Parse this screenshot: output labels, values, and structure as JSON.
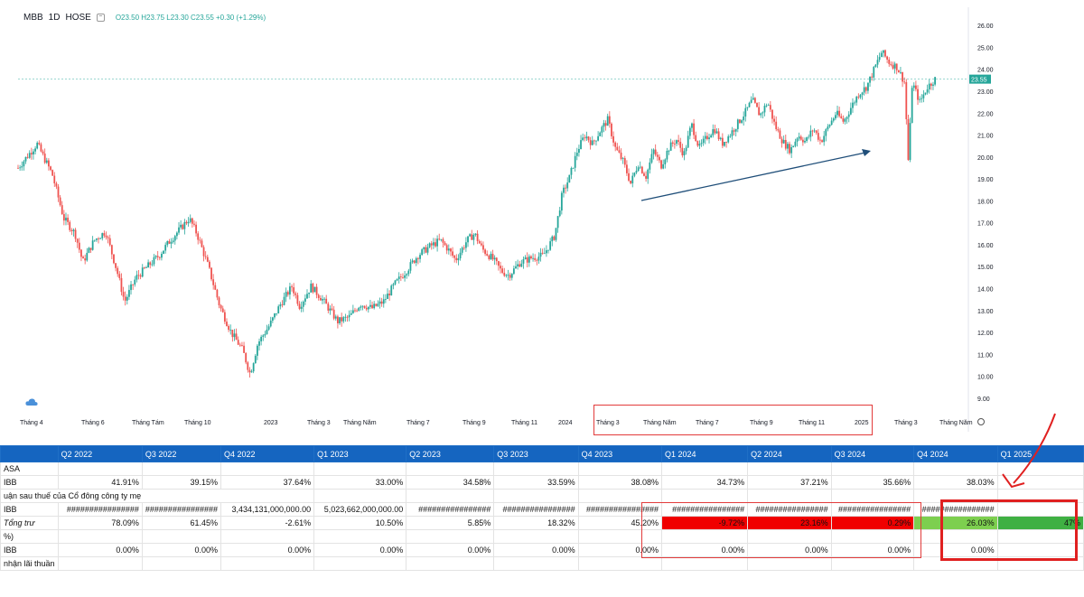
{
  "header": {
    "symbol": "MBB",
    "interval": "1D",
    "exchange": "HOSE",
    "ohlc_text": "O23.50  H23.75  L23.30  C23.55  +0.30 (+1.29%)"
  },
  "colors": {
    "up": "#26a69a",
    "down": "#ef5350",
    "header_bg": "#1565c0",
    "red_cell": "#f00000",
    "light_green_cell": "#7dcf4f",
    "green_cell": "#3fb043",
    "annotation": "#e02020",
    "arrow": "#1f4e79"
  },
  "chart_data": {
    "type": "line",
    "title": "",
    "xlabel": "",
    "ylabel": "",
    "ylim": [
      8.5,
      26.5
    ],
    "y_ticks": [
      "26.00",
      "25.00",
      "24.00",
      "23.00",
      "22.00",
      "21.00",
      "20.00",
      "19.00",
      "18.00",
      "17.00",
      "16.00",
      "15.00",
      "14.00",
      "13.00",
      "12.00",
      "11.00",
      "10.00",
      "9.00"
    ],
    "x_ticks": [
      "Tháng 4",
      "Tháng 6",
      "Tháng Tám",
      "Tháng 10",
      "2023",
      "Tháng 3",
      "Tháng Năm",
      "Tháng 7",
      "Tháng 9",
      "Tháng 11",
      "2024",
      "Tháng 3",
      "Tháng Năm",
      "Tháng 7",
      "Tháng 9",
      "Tháng 11",
      "2025",
      "Tháng 3",
      "Tháng Năm"
    ],
    "last_price": "23.55",
    "series": [
      {
        "points": [
          [
            0,
            19.5
          ],
          [
            5,
            20.6
          ],
          [
            9,
            19.2
          ],
          [
            12,
            17.2
          ],
          [
            15,
            16.5
          ],
          [
            17,
            15.2
          ],
          [
            20,
            16.2
          ],
          [
            23,
            16.6
          ],
          [
            26,
            14.8
          ],
          [
            28,
            13.4
          ],
          [
            31,
            14.5
          ],
          [
            34,
            15.0
          ],
          [
            37,
            15.5
          ],
          [
            40,
            16.2
          ],
          [
            43,
            16.8
          ],
          [
            45,
            17.2
          ],
          [
            47,
            16.5
          ],
          [
            50,
            15.0
          ],
          [
            53,
            13.2
          ],
          [
            56,
            12.0
          ],
          [
            59,
            11.2
          ],
          [
            61,
            10.1
          ],
          [
            63,
            11.5
          ],
          [
            66,
            12.3
          ],
          [
            69,
            13.3
          ],
          [
            72,
            14.1
          ],
          [
            74,
            13.2
          ],
          [
            77,
            14.1
          ],
          [
            80,
            13.5
          ],
          [
            82,
            13.0
          ],
          [
            84,
            12.5
          ],
          [
            87,
            12.7
          ],
          [
            90,
            13.3
          ],
          [
            93,
            13.1
          ],
          [
            96,
            13.4
          ],
          [
            99,
            14.2
          ],
          [
            102,
            14.8
          ],
          [
            105,
            15.5
          ],
          [
            108,
            15.9
          ],
          [
            111,
            16.2
          ],
          [
            113,
            15.8
          ],
          [
            115,
            15.3
          ],
          [
            118,
            16.2
          ],
          [
            120,
            16.5
          ],
          [
            122,
            15.8
          ],
          [
            125,
            15.3
          ],
          [
            127,
            14.8
          ],
          [
            129,
            14.6
          ],
          [
            132,
            15.2
          ],
          [
            135,
            15.4
          ],
          [
            138,
            15.5
          ],
          [
            141,
            16.4
          ],
          [
            143,
            18.3
          ],
          [
            145,
            19.1
          ],
          [
            147,
            20.3
          ],
          [
            149,
            21.0
          ],
          [
            151,
            20.6
          ],
          [
            153,
            21.2
          ],
          [
            155,
            21.7
          ],
          [
            157,
            20.4
          ],
          [
            159,
            19.8
          ],
          [
            161,
            18.8
          ],
          [
            163,
            19.7
          ],
          [
            165,
            19.1
          ],
          [
            167,
            20.3
          ],
          [
            169,
            19.6
          ],
          [
            171,
            20.4
          ],
          [
            173,
            20.8
          ],
          [
            175,
            20.1
          ],
          [
            177,
            21.5
          ],
          [
            179,
            20.4
          ],
          [
            181,
            20.9
          ],
          [
            183,
            21.3
          ],
          [
            185,
            20.6
          ],
          [
            187,
            21.0
          ],
          [
            189,
            21.5
          ],
          [
            191,
            22.0
          ],
          [
            193,
            22.6
          ],
          [
            195,
            21.9
          ],
          [
            197,
            22.5
          ],
          [
            199,
            21.4
          ],
          [
            201,
            20.7
          ],
          [
            203,
            20.3
          ],
          [
            205,
            21.0
          ],
          [
            207,
            20.7
          ],
          [
            209,
            21.3
          ],
          [
            211,
            20.7
          ],
          [
            213,
            21.4
          ],
          [
            215,
            22.0
          ],
          [
            217,
            21.6
          ],
          [
            219,
            22.3
          ],
          [
            221,
            22.9
          ],
          [
            223,
            23.2
          ],
          [
            225,
            24.0
          ],
          [
            227,
            24.8
          ],
          [
            229,
            24.3
          ],
          [
            231,
            24.1
          ],
          [
            233,
            23.4
          ],
          [
            234,
            19.7
          ],
          [
            235,
            23.4
          ],
          [
            237,
            22.5
          ],
          [
            239,
            23.2
          ],
          [
            241,
            23.55
          ]
        ]
      }
    ]
  },
  "annotation_arrow": "trend arrow",
  "table": {
    "columns": [
      "",
      "Q2 2022",
      "Q3 2022",
      "Q4 2022",
      "Q1 2023",
      "Q2 2023",
      "Q3 2023",
      "Q4 2023",
      "Q1 2024",
      "Q2 2024",
      "Q3 2024",
      "Q4 2024",
      "Q1 2025"
    ],
    "rows": [
      {
        "label": "ASA",
        "cells": [
          "",
          "",
          "",
          "",
          "",
          "",
          "",
          "",
          "",
          "",
          "",
          ""
        ],
        "italic": false
      },
      {
        "label": "IBB",
        "cells": [
          "41.91%",
          "39.15%",
          "37.64%",
          "33.00%",
          "34.58%",
          "33.59%",
          "38.08%",
          "34.73%",
          "37.21%",
          "35.66%",
          "38.03%",
          ""
        ],
        "italic": false
      },
      {
        "label": "uận sau thuế của Cổ đông công ty mẹ",
        "cells": [
          "",
          "",
          "",
          "",
          "",
          "",
          "",
          "",
          "",
          "",
          "",
          ""
        ],
        "italic": false,
        "span": true
      },
      {
        "label": "IBB",
        "cells": [
          "################",
          "################",
          "3,434,131,000,000.00",
          "5,023,662,000,000.00",
          "################",
          "################",
          "################",
          "################",
          "################",
          "################",
          "################",
          ""
        ],
        "italic": false
      },
      {
        "label": "Tổng trư",
        "cells": [
          "78.09%",
          "61.45%",
          "-2.61%",
          "10.50%",
          "5.85%",
          "18.32%",
          "45.20%",
          "-9.72%",
          "23.16%",
          "0.29%",
          "26.03%",
          "47%"
        ],
        "italic": true,
        "styles": [
          "",
          "",
          "",
          "",
          "",
          "",
          "",
          "red",
          "red",
          "red",
          "lightgreen",
          "green"
        ]
      },
      {
        "label": "%)",
        "cells": [
          "",
          "",
          "",
          "",
          "",
          "",
          "",
          "",
          "",
          "",
          "",
          ""
        ],
        "italic": false
      },
      {
        "label": "IBB",
        "cells": [
          "0.00%",
          "0.00%",
          "0.00%",
          "0.00%",
          "0.00%",
          "0.00%",
          "0.00%",
          "0.00%",
          "0.00%",
          "0.00%",
          "0.00%",
          ""
        ],
        "italic": false
      },
      {
        "label": "nhận lãi thuần",
        "cells": [
          "",
          "",
          "",
          "",
          "",
          "",
          "",
          "",
          "",
          "",
          "",
          ""
        ],
        "italic": false
      }
    ]
  }
}
